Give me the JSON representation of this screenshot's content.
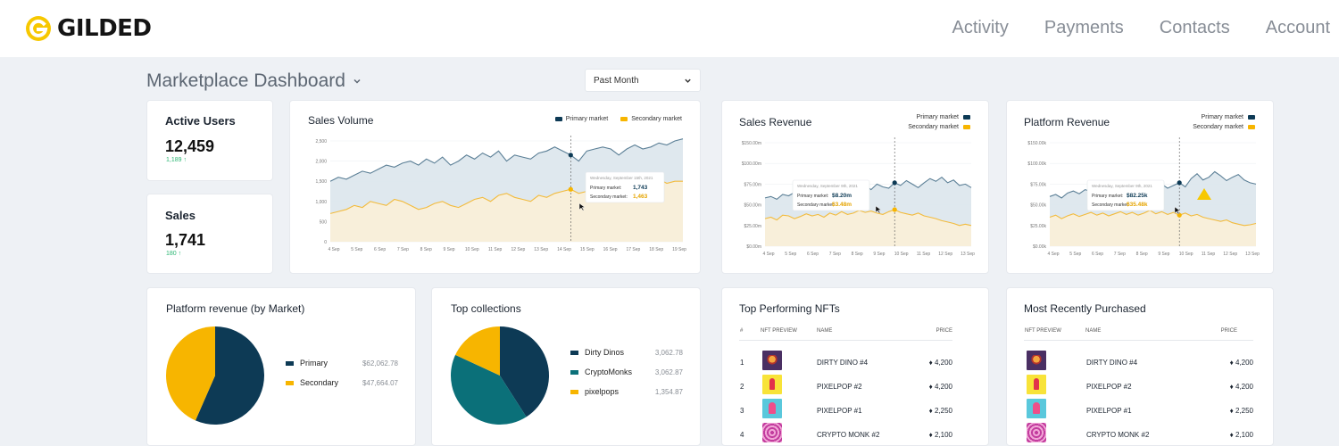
{
  "header": {
    "logo_text": "GILDED",
    "nav": [
      "Activity",
      "Payments",
      "Contacts",
      "Account"
    ]
  },
  "page": {
    "title": "Marketplace Dashboard",
    "period": "Past Month"
  },
  "colors": {
    "primary": "#0d3a55",
    "secondary": "#f7b500",
    "teal": "#0b7079",
    "positive": "#2bb673",
    "logo": "#f7c800"
  },
  "stats": {
    "active_users": {
      "label": "Active Users",
      "value": "12,459",
      "delta": "1,189"
    },
    "sales": {
      "label": "Sales",
      "value": "1,741",
      "delta": "180"
    }
  },
  "sales_volume": {
    "title": "Sales Volume",
    "legend": [
      "Primary market",
      "Secondary market"
    ],
    "y_ticks": [
      "2,500",
      "2,000",
      "1,500",
      "1,000",
      "500",
      "0"
    ],
    "x_ticks": [
      "4 Sep",
      "5 Sep",
      "6 Sep",
      "7 Sep",
      "8 Sep",
      "9 Sep",
      "10 Sep",
      "11 Sep",
      "12 Sep",
      "13 Sep",
      "14 Sep",
      "15 Sep",
      "16 Sep",
      "17 Sep",
      "18 Sep",
      "19 Sep"
    ],
    "tooltip": {
      "date": "Wednesday, September 15th, 2021",
      "primary_label": "Primary market:",
      "primary_value": "1,743",
      "secondary_label": "Secondary market:",
      "secondary_value": "1,463"
    }
  },
  "sales_revenue": {
    "title": "Sales Revenue",
    "legend": [
      "Primary market",
      "Secondary market"
    ],
    "y_ticks": [
      "$150.00m",
      "$100.00m",
      "$75.00m",
      "$50.00m",
      "$25.00m",
      "$0.00m"
    ],
    "x_ticks": [
      "4 Sep",
      "5 Sep",
      "6 Sep",
      "7 Sep",
      "8 Sep",
      "9 Sep",
      "10 Sep",
      "11 Sep",
      "12 Sep",
      "13 Sep"
    ],
    "tooltip": {
      "date": "Wednesday, September 9th, 2021",
      "primary_label": "Primary market:",
      "primary_value": "$8.20m",
      "secondary_label": "Secondary market:",
      "secondary_value": "$3.48m"
    }
  },
  "platform_revenue": {
    "title": "Platform Revenue",
    "legend": [
      "Primary market",
      "Secondary market"
    ],
    "y_ticks": [
      "$150.00k",
      "$100.00k",
      "$75.00k",
      "$50.00k",
      "$25.00k",
      "$0.00k"
    ],
    "x_ticks": [
      "4 Sep",
      "5 Sep",
      "6 Sep",
      "7 Sep",
      "8 Sep",
      "9 Sep",
      "10 Sep",
      "11 Sep",
      "12 Sep",
      "13 Sep"
    ],
    "tooltip": {
      "date": "Wednesday, September 9th, 2021",
      "primary_label": "Primary market:",
      "primary_value": "$82.25k",
      "secondary_label": "Secondary market:",
      "secondary_value": "$35.48k"
    }
  },
  "revenue_by_market": {
    "title": "Platform revenue (by Market)",
    "items": [
      {
        "label": "Primary",
        "value": "$62,062.78"
      },
      {
        "label": "Secondary",
        "value": "$47,664.07"
      }
    ]
  },
  "top_collections": {
    "title": "Top collections",
    "items": [
      {
        "label": "Dirty Dinos",
        "value": "3,062.78"
      },
      {
        "label": "CryptoMonks",
        "value": "3,062.87"
      },
      {
        "label": "pixelpops",
        "value": "1,354.87"
      }
    ]
  },
  "top_nfts": {
    "title": "Top Performing NFTs",
    "columns": [
      "#",
      "NFT Preview",
      "Name",
      "Price"
    ],
    "rows": [
      {
        "rank": "1",
        "name": "DIRTY DINO #4",
        "price": "♦ 4,200",
        "thumb": "dino"
      },
      {
        "rank": "2",
        "name": "PIXELPOP #2",
        "price": "♦ 4,200",
        "thumb": "pop1"
      },
      {
        "rank": "3",
        "name": "PIXELPOP #1",
        "price": "♦ 2,250",
        "thumb": "pop2"
      },
      {
        "rank": "4",
        "name": "CRYPTO MONK #2",
        "price": "♦ 2,100",
        "thumb": "monk"
      }
    ]
  },
  "recent": {
    "title": "Most Recently Purchased",
    "columns": [
      "NFT Preview",
      "Name",
      "Price"
    ],
    "rows": [
      {
        "name": "DIRTY DINO #4",
        "price": "♦ 4,200",
        "thumb": "dino"
      },
      {
        "name": "PIXELPOP #2",
        "price": "♦ 4,200",
        "thumb": "pop1"
      },
      {
        "name": "PIXELPOP #1",
        "price": "♦ 2,250",
        "thumb": "pop2"
      },
      {
        "name": "CRYPTO MONK #2",
        "price": "♦ 2,100",
        "thumb": "monk"
      }
    ]
  },
  "chart_data": [
    {
      "type": "area",
      "title": "Sales Volume",
      "ylim": [
        0,
        2500
      ],
      "series": [
        {
          "name": "Primary market",
          "values": [
            1500,
            1600,
            1550,
            1650,
            1750,
            1700,
            1800,
            1900,
            1850,
            1950,
            2000,
            1900,
            2050,
            1950,
            2100,
            1900,
            2000,
            2150,
            2050,
            2200,
            2100,
            2250,
            2000,
            2150,
            2100,
            2050,
            2200,
            2250,
            2350,
            2250,
            2150,
            2000,
            2250,
            2300,
            2350,
            2300,
            2150,
            2300,
            2400,
            2300,
            2350,
            2450,
            2400,
            2500,
            2550
          ]
        },
        {
          "name": "Secondary market",
          "values": [
            700,
            750,
            800,
            900,
            850,
            1000,
            950,
            900,
            1050,
            1000,
            900,
            800,
            850,
            950,
            1000,
            900,
            850,
            950,
            1050,
            1100,
            1000,
            1150,
            1200,
            1100,
            1050,
            1000,
            1150,
            1100,
            1200,
            1250,
            1300,
            1200,
            1250,
            1350,
            1400,
            1300,
            1350,
            1450,
            1500,
            1400,
            1500,
            1550,
            1450,
            1500,
            1500
          ]
        }
      ]
    },
    {
      "type": "area",
      "title": "Sales Revenue",
      "ylim": [
        0,
        150
      ],
      "series": [
        {
          "name": "Primary market",
          "values": [
            70,
            72,
            68,
            75,
            73,
            78,
            74,
            80,
            76,
            79,
            82,
            78,
            80,
            77,
            84,
            80,
            83,
            88,
            82,
            90,
            86,
            84,
            92,
            88,
            95,
            90,
            85,
            92,
            98,
            94,
            100,
            92,
            96,
            88,
            90,
            85
          ]
        },
        {
          "name": "Secondary market",
          "values": [
            40,
            42,
            38,
            45,
            44,
            40,
            43,
            47,
            44,
            46,
            42,
            48,
            45,
            50,
            46,
            48,
            52,
            49,
            51,
            48,
            46,
            50,
            53,
            49,
            47,
            45,
            48,
            44,
            42,
            40,
            37,
            35,
            33,
            30,
            32,
            30
          ]
        }
      ]
    },
    {
      "type": "area",
      "title": "Platform Revenue",
      "ylim": [
        0,
        150
      ],
      "series": [
        {
          "name": "Primary market",
          "values": [
            72,
            75,
            70,
            77,
            80,
            76,
            82,
            79,
            85,
            81,
            78,
            83,
            86,
            80,
            84,
            88,
            82,
            79,
            85,
            90,
            84,
            88,
            92,
            86,
            98,
            105,
            96,
            100,
            108,
            102,
            95,
            100,
            104,
            96,
            92,
            90
          ]
        },
        {
          "name": "Secondary market",
          "values": [
            42,
            45,
            40,
            44,
            47,
            43,
            46,
            49,
            45,
            48,
            44,
            47,
            50,
            46,
            49,
            45,
            48,
            52,
            47,
            50,
            46,
            49,
            45,
            48,
            44,
            46,
            42,
            40,
            38,
            36,
            38,
            34,
            32,
            30,
            31,
            33
          ]
        }
      ]
    },
    {
      "type": "pie",
      "title": "Platform revenue (by Market)",
      "categories": [
        "Primary",
        "Secondary"
      ],
      "values": [
        62062.78,
        47664.07
      ]
    },
    {
      "type": "pie",
      "title": "Top collections",
      "categories": [
        "Dirty Dinos",
        "CryptoMonks",
        "pixelpops"
      ],
      "values": [
        3062.78,
        3062.87,
        1354.87
      ]
    }
  ]
}
